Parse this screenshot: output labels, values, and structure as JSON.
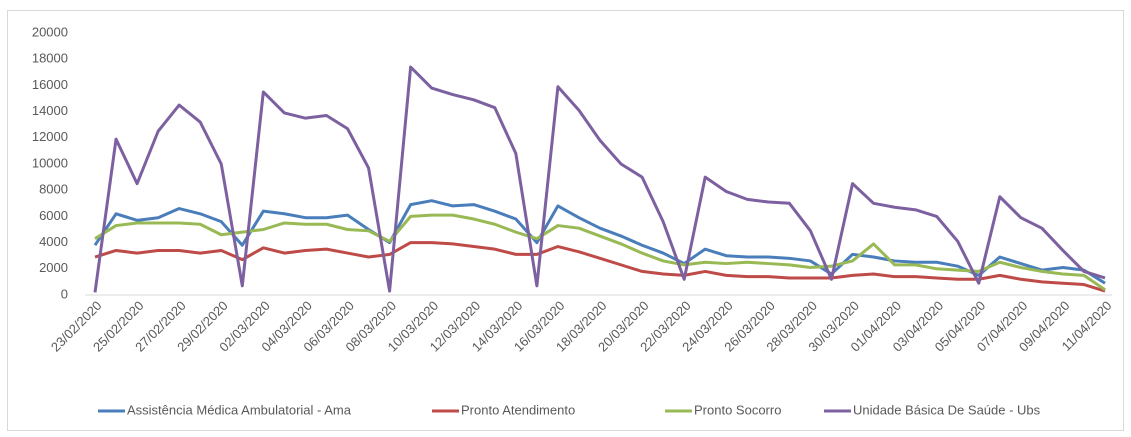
{
  "chart_data": {
    "type": "line",
    "categories": [
      "23/02/2020",
      null,
      "25/02/2020",
      null,
      "27/02/2020",
      null,
      "29/02/2020",
      null,
      "02/03/2020",
      null,
      "04/03/2020",
      null,
      "06/03/2020",
      null,
      "08/03/2020",
      null,
      "10/03/2020",
      null,
      "12/03/2020",
      null,
      "14/03/2020",
      null,
      "16/03/2020",
      null,
      "18/03/2020",
      null,
      "20/03/2020",
      null,
      "22/03/2020",
      null,
      "24/03/2020",
      null,
      "26/03/2020",
      null,
      "28/03/2020",
      null,
      "30/03/2020",
      null,
      "01/04/2020",
      null,
      "03/04/2020",
      null,
      "05/04/2020",
      null,
      "07/04/2020",
      null,
      "09/04/2020",
      null,
      "11/04/2020"
    ],
    "series": [
      {
        "name": "Assistência Médica Ambulatorial - Ama",
        "color": "#4a7ebb",
        "values": [
          3800,
          6200,
          5700,
          5900,
          6600,
          6200,
          5600,
          3800,
          6400,
          6200,
          5900,
          5900,
          6100,
          5000,
          4000,
          6900,
          7200,
          6800,
          6900,
          6400,
          5800,
          4000,
          6800,
          5900,
          5100,
          4500,
          3800,
          3200,
          2400,
          3500,
          3000,
          2900,
          2900,
          2800,
          2600,
          1600,
          3100,
          2900,
          2600,
          2500,
          2500,
          2200,
          1500,
          2900,
          2400,
          1900,
          2100,
          1900,
          900
        ]
      },
      {
        "name": "Pronto Atendimento",
        "color": "#be4b48",
        "values": [
          2900,
          3400,
          3200,
          3400,
          3400,
          3200,
          3400,
          2700,
          3600,
          3200,
          3400,
          3500,
          3200,
          2900,
          3100,
          4000,
          4000,
          3900,
          3700,
          3500,
          3100,
          3100,
          3700,
          3300,
          2800,
          2300,
          1800,
          1600,
          1500,
          1800,
          1500,
          1400,
          1400,
          1300,
          1300,
          1300,
          1500,
          1600,
          1400,
          1400,
          1300,
          1200,
          1200,
          1500,
          1200,
          1000,
          900,
          800,
          300
        ]
      },
      {
        "name": "Pronto Socorro",
        "color": "#98b954",
        "values": [
          4300,
          5300,
          5500,
          5500,
          5500,
          5400,
          4600,
          4800,
          5000,
          5500,
          5400,
          5400,
          5000,
          4900,
          4100,
          6000,
          6100,
          6100,
          5800,
          5400,
          4800,
          4300,
          5300,
          5100,
          4500,
          3900,
          3200,
          2600,
          2300,
          2500,
          2400,
          2500,
          2400,
          2300,
          2100,
          2200,
          2600,
          3900,
          2300,
          2300,
          2000,
          1900,
          1800,
          2500,
          2100,
          1800,
          1600,
          1500,
          400
        ]
      },
      {
        "name": "Unidade Básica De Saúde - Ubs",
        "color": "#7d60a0",
        "values": [
          200,
          11900,
          8500,
          12500,
          14500,
          13200,
          10000,
          700,
          15500,
          13900,
          13500,
          13700,
          12700,
          9700,
          300,
          17400,
          15800,
          15300,
          14900,
          14300,
          10800,
          700,
          15900,
          14100,
          11800,
          10000,
          9000,
          5600,
          1200,
          9000,
          7900,
          7300,
          7100,
          7000,
          4900,
          1200,
          8500,
          7000,
          6700,
          6500,
          6000,
          4100,
          900,
          7500,
          5900,
          5100,
          3400,
          1800,
          1300
        ]
      }
    ],
    "ylim": [
      0,
      20000
    ],
    "yticks": [
      0,
      2000,
      4000,
      6000,
      8000,
      10000,
      12000,
      14000,
      16000,
      18000,
      20000
    ],
    "grid": false,
    "legend": "bottom"
  }
}
